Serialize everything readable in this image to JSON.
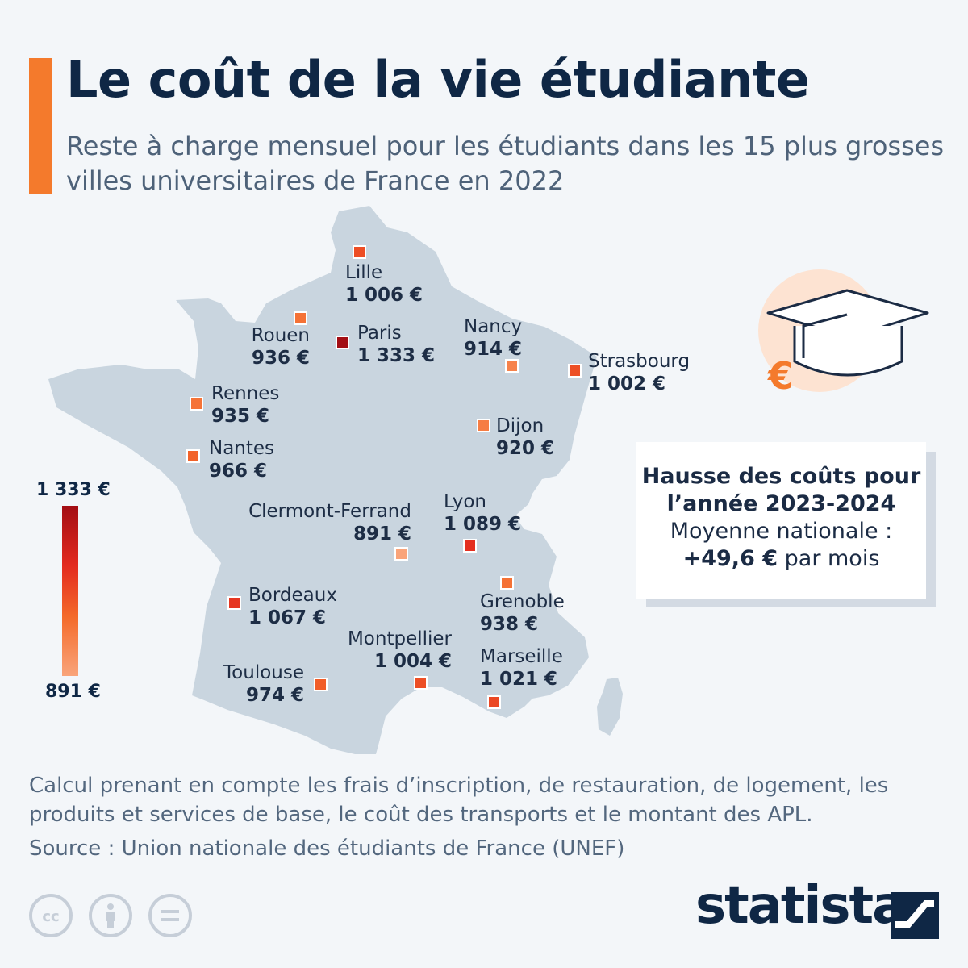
{
  "header": {
    "title": "Le coût de la vie étudiante",
    "subtitle": "Reste à charge mensuel pour les étudiants dans les 15 plus grosses villes universitaires de France en 2022"
  },
  "cities": [
    {
      "name": "Lille",
      "value": "1 006 €",
      "amount": 1006
    },
    {
      "name": "Rouen",
      "value": "936 €",
      "amount": 936
    },
    {
      "name": "Paris",
      "value": "1 333 €",
      "amount": 1333
    },
    {
      "name": "Nancy",
      "value": "914 €",
      "amount": 914
    },
    {
      "name": "Strasbourg",
      "value": "1 002 €",
      "amount": 1002
    },
    {
      "name": "Rennes",
      "value": "935 €",
      "amount": 935
    },
    {
      "name": "Dijon",
      "value": "920 €",
      "amount": 920
    },
    {
      "name": "Nantes",
      "value": "966 €",
      "amount": 966
    },
    {
      "name": "Clermont-Ferrand",
      "value": "891 €",
      "amount": 891
    },
    {
      "name": "Lyon",
      "value": "1 089 €",
      "amount": 1089
    },
    {
      "name": "Bordeaux",
      "value": "1 067 €",
      "amount": 1067
    },
    {
      "name": "Grenoble",
      "value": "938 €",
      "amount": 938
    },
    {
      "name": "Montpellier",
      "value": "1 004 €",
      "amount": 1004
    },
    {
      "name": "Marseille",
      "value": "1 021 €",
      "amount": 1021
    },
    {
      "name": "Toulouse",
      "value": "974 €",
      "amount": 974
    }
  ],
  "legend": {
    "max": "1 333 €",
    "min": "891 €"
  },
  "info_box": {
    "line1": "Hausse des coûts pour",
    "line2": "l’année 2023-2024",
    "line3": "Moyenne nationale :",
    "amount": "+49,6 €",
    "suffix": " par mois"
  },
  "footer": {
    "note": "Calcul prenant en compte les frais d’inscription, de restauration, de logement, les produits et services de base, le coût des transports et le montant des APL.",
    "source": "Source : Union nationale des étudiants de France (UNEF)",
    "brand": "statista"
  },
  "icons": [
    "graduation-cap-icon",
    "euro-icon",
    "cc-icon",
    "attribution-icon",
    "no-derivatives-icon",
    "statista-logo-icon"
  ],
  "colors": {
    "accent": "#f47a2c",
    "map_fill": "#c9d5df",
    "scale_high": "#a30e14",
    "scale_mid": "#e32a1f",
    "scale_low": "#f9a47a",
    "title": "#0f2745"
  }
}
